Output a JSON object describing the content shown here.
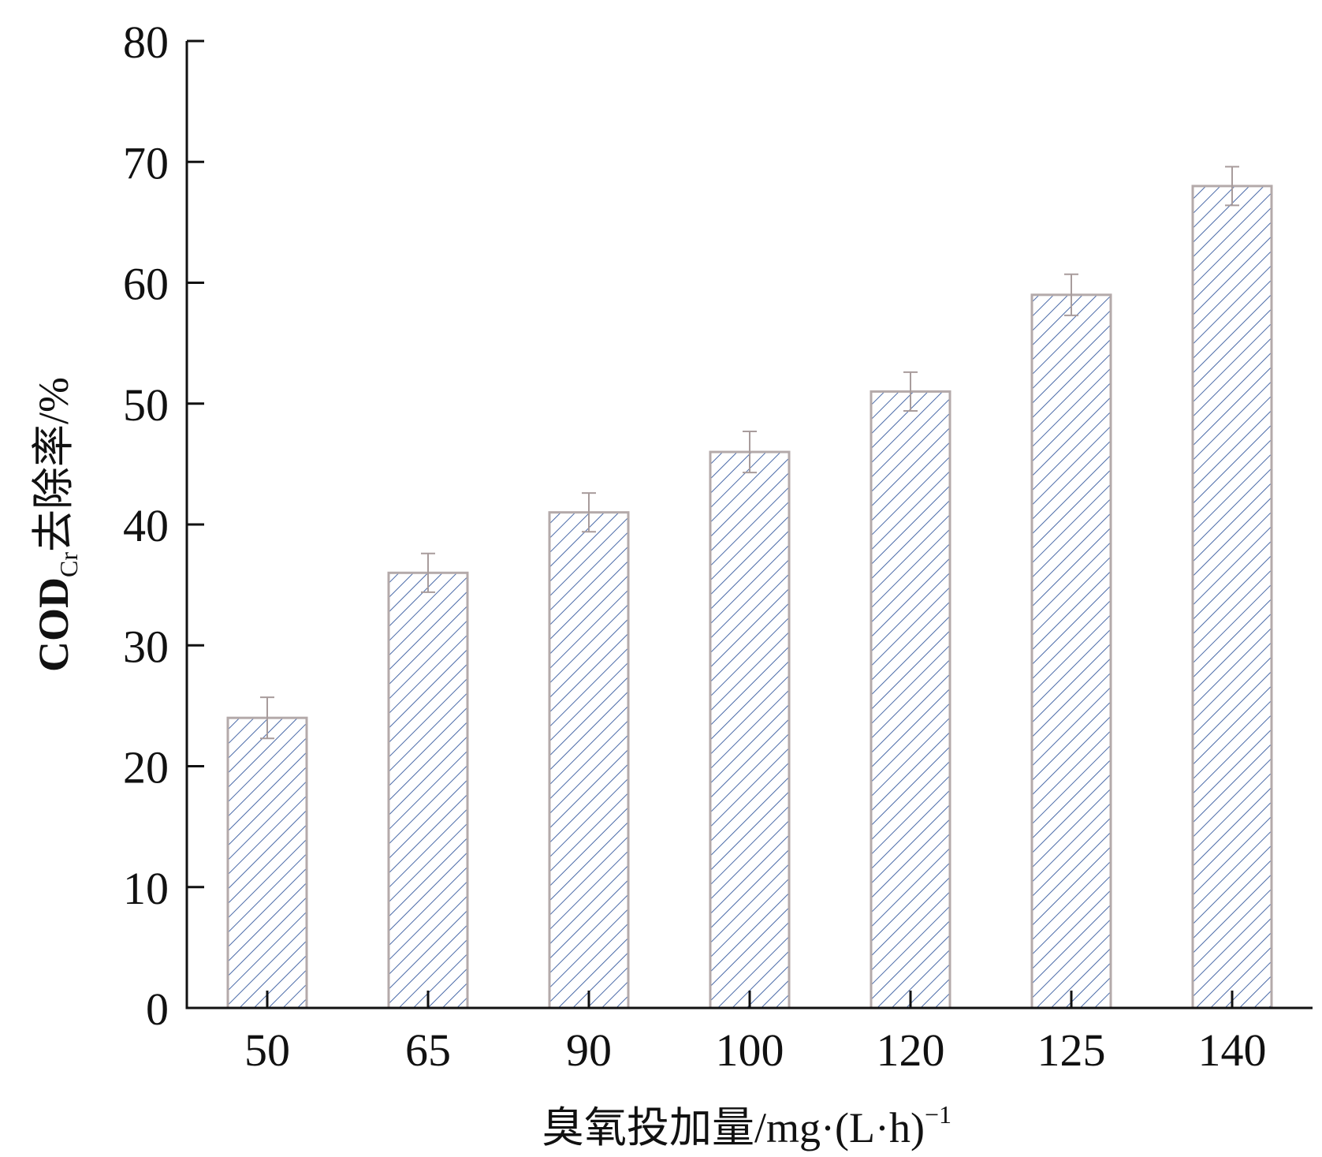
{
  "chart_data": {
    "type": "bar",
    "categories": [
      "50",
      "65",
      "90",
      "100",
      "120",
      "125",
      "140"
    ],
    "values": [
      24,
      36,
      41,
      46,
      51,
      59,
      68
    ],
    "error": [
      1.7,
      1.6,
      1.6,
      1.7,
      1.6,
      1.7,
      1.6
    ],
    "ylim": [
      0,
      80
    ],
    "yticks": [
      0,
      10,
      20,
      30,
      40,
      50,
      60,
      70,
      80
    ],
    "xlabel": "臭氧投加量/mg·(L·h)",
    "xlabel_sup": "−1",
    "ylabel_main": "COD",
    "ylabel_sub": "Cr",
    "ylabel_rest": "去除率/%",
    "grid": false,
    "bar_fill": "hatched",
    "colors": {
      "hatch": "#4a6aa8",
      "bar_edge": "#b4aaaa",
      "errorbar": "#a89c9c",
      "axis": "#111111"
    }
  }
}
